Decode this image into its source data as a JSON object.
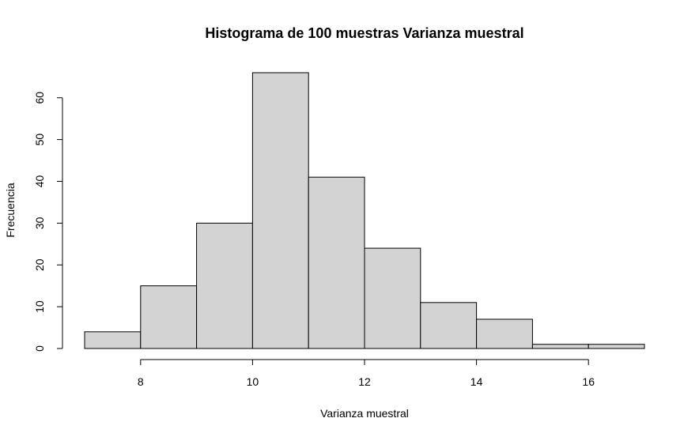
{
  "chart_data": {
    "type": "bar",
    "title": "Histograma de 100 muestras Varianza muestral",
    "xlabel": "Varianza muestral",
    "ylabel": "Frecuencia",
    "bins": [
      {
        "from": 7,
        "to": 8,
        "count": 4
      },
      {
        "from": 8,
        "to": 9,
        "count": 15
      },
      {
        "from": 9,
        "to": 10,
        "count": 30
      },
      {
        "from": 10,
        "to": 11,
        "count": 66
      },
      {
        "from": 11,
        "to": 12,
        "count": 41
      },
      {
        "from": 12,
        "to": 13,
        "count": 24
      },
      {
        "from": 13,
        "to": 14,
        "count": 11
      },
      {
        "from": 14,
        "to": 15,
        "count": 7
      },
      {
        "from": 15,
        "to": 16,
        "count": 1
      },
      {
        "from": 16,
        "to": 17,
        "count": 1
      }
    ],
    "xlim": [
      7,
      17
    ],
    "ylim": [
      0,
      66
    ],
    "x_ticks": [
      "8",
      "10",
      "12",
      "14",
      "16"
    ],
    "y_ticks": [
      "0",
      "10",
      "20",
      "30",
      "40",
      "50",
      "60"
    ],
    "bar_color": "#d3d3d3",
    "border_color": "#000000",
    "grid": false,
    "legend": "none"
  }
}
